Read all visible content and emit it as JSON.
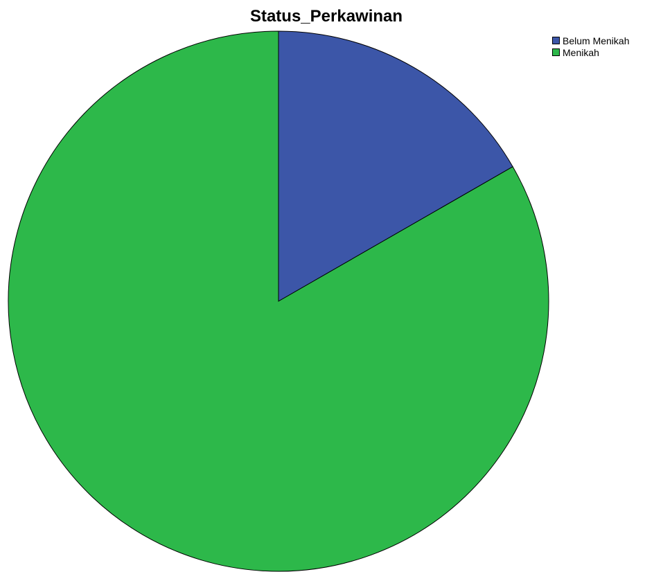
{
  "chart_data": {
    "type": "pie",
    "title": "Status_Perkawinan",
    "categories": [
      "Belum Menikah",
      "Menikah"
    ],
    "values": [
      16.7,
      83.3
    ],
    "colors": [
      "#3c56a8",
      "#2db84a"
    ],
    "start_angle_deg": 0,
    "direction": "clockwise",
    "legend_position": "top-right"
  }
}
